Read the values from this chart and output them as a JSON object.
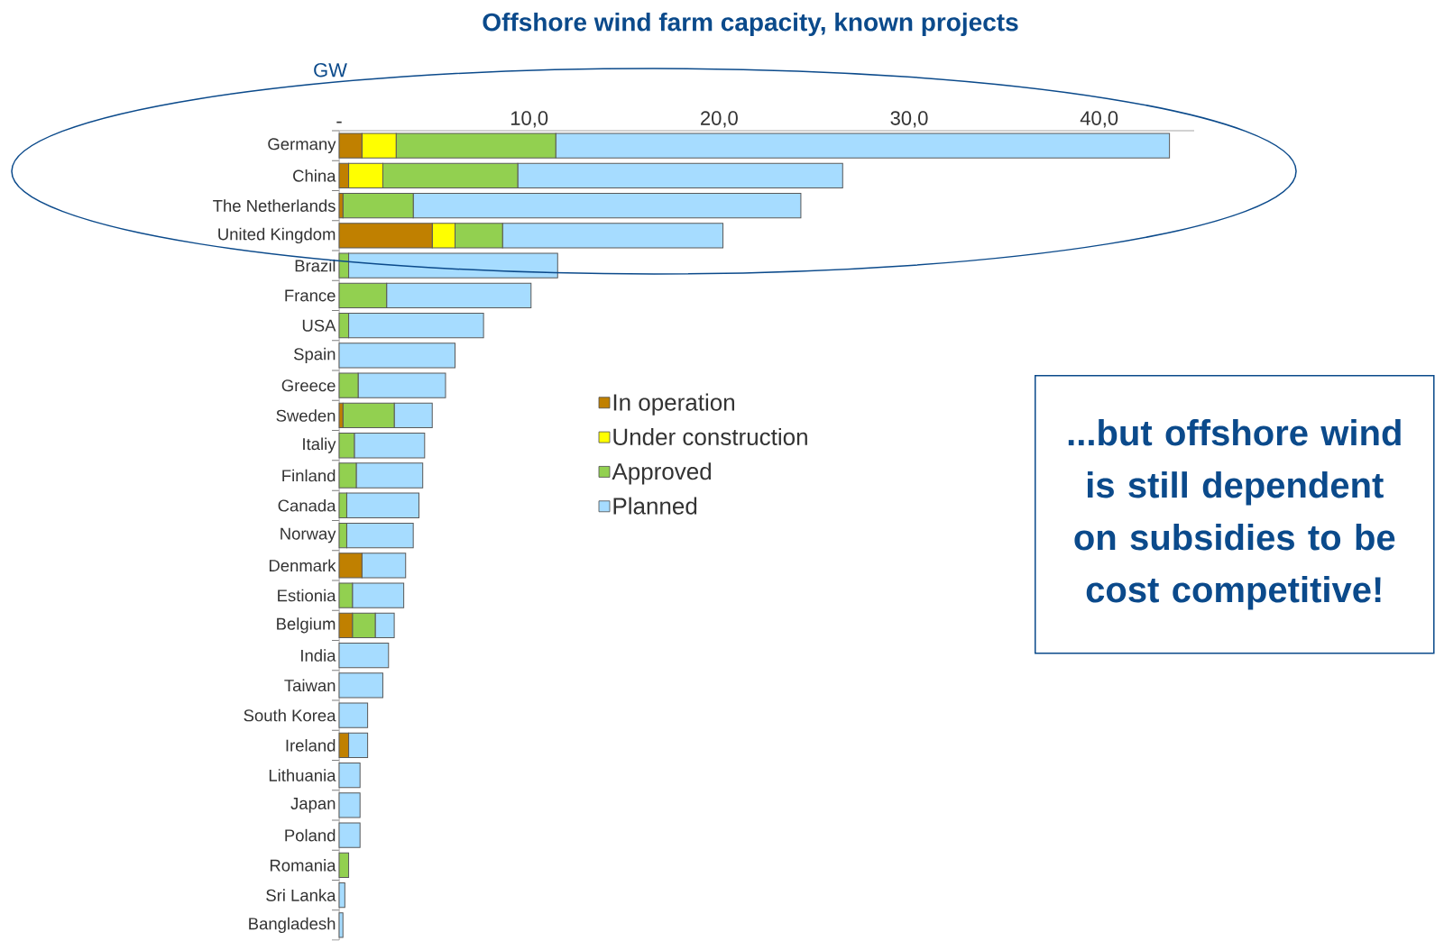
{
  "chart_data": {
    "type": "bar",
    "orientation": "horizontal",
    "stacked": true,
    "title": "Offshore wind farm capacity, known projects",
    "xlabel": "GW",
    "categories": [
      "Germany",
      "China",
      "The Netherlands",
      "United Kingdom",
      "Brazil",
      "France",
      "USA",
      "Spain",
      "Greece",
      "Sweden",
      "Italiy",
      "Finland",
      "Canada",
      "Norway",
      "Denmark",
      "Estionia",
      "Belgium",
      "India",
      "Taiwan",
      "South Korea",
      "Ireland",
      "Lithuania",
      "Japan",
      "Poland",
      "Romania",
      "Sri Lanka",
      "Bangladesh"
    ],
    "series": [
      {
        "name": "In operation",
        "color": "#c08000",
        "values": [
          1.2,
          0.5,
          0.2,
          4.9,
          0,
          0,
          0,
          0,
          0,
          0.2,
          0,
          0,
          0,
          0,
          1.2,
          0,
          0.7,
          0,
          0,
          0,
          0.5,
          0,
          0,
          0,
          0,
          0,
          0
        ]
      },
      {
        "name": "Under construction",
        "color": "#ffff00",
        "values": [
          1.8,
          1.8,
          0,
          1.2,
          0,
          0,
          0,
          0,
          0,
          0,
          0,
          0,
          0,
          0,
          0,
          0,
          0,
          0,
          0,
          0,
          0,
          0,
          0,
          0,
          0,
          0,
          0
        ]
      },
      {
        "name": "Approved",
        "color": "#92d050",
        "values": [
          8.4,
          7.1,
          3.7,
          2.5,
          0.5,
          2.5,
          0.5,
          0,
          1.0,
          2.7,
          0.8,
          0.9,
          0.4,
          0.4,
          0,
          0.7,
          1.2,
          0,
          0,
          0,
          0,
          0,
          0,
          0,
          0.5,
          0,
          0
        ]
      },
      {
        "name": "Planned",
        "color": "#a6dcff",
        "values": [
          32.3,
          17.1,
          20.4,
          11.6,
          11.0,
          7.6,
          7.1,
          6.1,
          4.6,
          2.0,
          3.7,
          3.5,
          3.8,
          3.5,
          2.3,
          2.7,
          1.0,
          2.6,
          2.3,
          1.5,
          1.0,
          1.1,
          1.1,
          1.1,
          0,
          0.3,
          0.2
        ]
      }
    ],
    "xlim": [
      0,
      45
    ],
    "xticks": [
      {
        "value": 0,
        "label": "-"
      },
      {
        "value": 10,
        "label": "10,0"
      },
      {
        "value": 20,
        "label": "20,0"
      },
      {
        "value": 30,
        "label": "30,0"
      },
      {
        "value": 40,
        "label": "40,0"
      }
    ],
    "grid": false,
    "legend": "center",
    "annotations": [
      "...but offshore wind is still dependent on subsidies to be cost competitive!"
    ]
  }
}
